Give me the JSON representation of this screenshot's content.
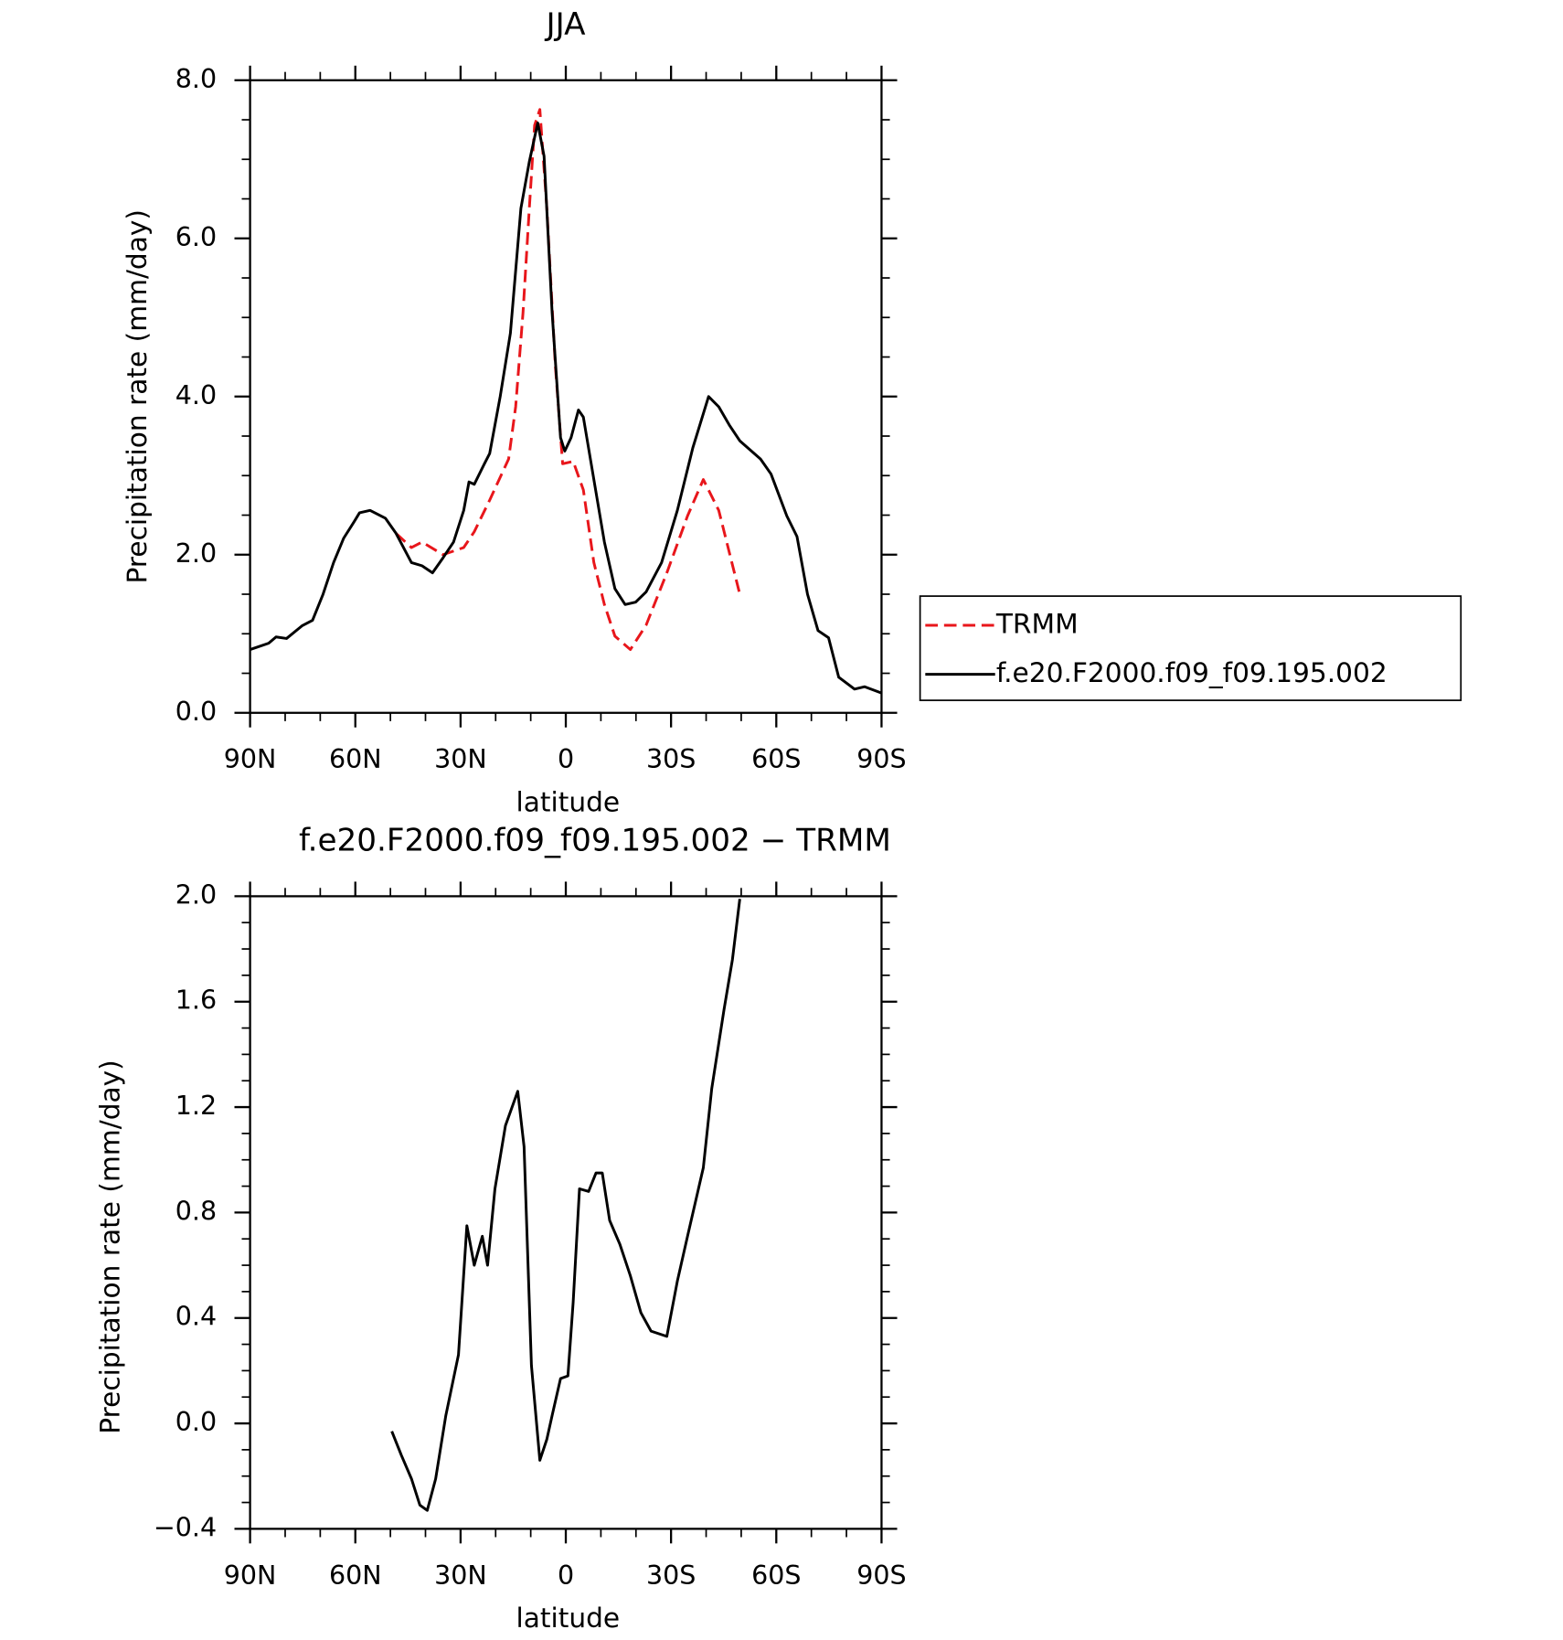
{
  "chart_data": [
    {
      "type": "line",
      "title": "JJA",
      "xlabel": "latitude",
      "ylabel": "Precipitation rate (mm/day)",
      "xlim": [
        90,
        -90
      ],
      "xticks": [
        {
          "value": 90,
          "label": "90N"
        },
        {
          "value": 60,
          "label": "60N"
        },
        {
          "value": 30,
          "label": "30N"
        },
        0,
        {
          "value": -30,
          "label": "30S"
        },
        {
          "value": -60,
          "label": "60S"
        },
        {
          "value": -90,
          "label": "90S"
        }
      ],
      "ylim": [
        0,
        8
      ],
      "yticks": [
        {
          "value": 0,
          "label": "0.0"
        },
        {
          "value": 2,
          "label": "2.0"
        },
        {
          "value": 4,
          "label": "4.0"
        },
        {
          "value": 6,
          "label": "6.0"
        },
        {
          "value": 8,
          "label": "8.0"
        }
      ],
      "legend": "outside-right",
      "series": [
        {
          "name": "TRMM",
          "color": "#e8161b",
          "line_style": "dashed",
          "x": [
            48.4,
            44,
            41,
            35,
            29.1,
            26.1,
            21.7,
            16.3,
            14.3,
            12.2,
            10.4,
            8.9,
            7.4,
            5.4,
            3,
            0.9,
            -2.1,
            -5,
            -8,
            -11,
            -14,
            -18.4,
            -22.9,
            -28.8,
            -34.7,
            -39.2,
            -43.6,
            -49.6
          ],
          "values": [
            2.27,
            2.09,
            2.16,
            2.0,
            2.09,
            2.29,
            2.69,
            3.21,
            3.87,
            5.06,
            6.38,
            7.43,
            7.63,
            6.38,
            4.4,
            3.15,
            3.18,
            2.82,
            1.9,
            1.37,
            0.97,
            0.8,
            1.11,
            1.77,
            2.49,
            2.95,
            2.56,
            1.5
          ]
        },
        {
          "name": "f.e20.F2000.f09_f09.195.002",
          "color": "#000000",
          "line_style": "solid",
          "x": [
            90,
            84.7,
            82.6,
            79.6,
            75.2,
            72.2,
            69.2,
            66.2,
            63.3,
            60.3,
            58.8,
            55.8,
            51.4,
            48.4,
            44,
            41,
            38,
            35,
            32,
            29.1,
            27.6,
            26.1,
            23.2,
            21.7,
            18.7,
            15.8,
            12.8,
            10.4,
            8,
            6.2,
            3.9,
            1.5,
            0.3,
            -1.5,
            -3.6,
            -5,
            -8,
            -11,
            -14,
            -16.9,
            -19.9,
            -22.9,
            -27.3,
            -31.8,
            -36.2,
            -40.7,
            -43.6,
            -46.6,
            -49.6,
            -55.5,
            -58.5,
            -63,
            -65.9,
            -68.9,
            -71.9,
            -74.9,
            -77.8,
            -82.3,
            -85.2,
            -90
          ],
          "values": [
            0.8,
            0.88,
            0.96,
            0.94,
            1.1,
            1.17,
            1.5,
            1.9,
            2.21,
            2.42,
            2.53,
            2.56,
            2.46,
            2.27,
            1.9,
            1.86,
            1.77,
            1.96,
            2.16,
            2.56,
            2.92,
            2.89,
            3.15,
            3.28,
            4.0,
            4.8,
            6.38,
            6.97,
            7.46,
            7.04,
            5.06,
            3.48,
            3.31,
            3.48,
            3.83,
            3.74,
            2.95,
            2.16,
            1.57,
            1.37,
            1.4,
            1.53,
            1.9,
            2.56,
            3.35,
            4.0,
            3.87,
            3.64,
            3.44,
            3.21,
            3.02,
            2.49,
            2.23,
            1.5,
            1.04,
            0.95,
            0.45,
            0.3,
            0.33,
            0.25
          ]
        }
      ]
    },
    {
      "type": "line",
      "title": "f.e20.F2000.f09_f09.195.002 − TRMM",
      "xlabel": "latitude",
      "ylabel": "Precipitation rate (mm/day)",
      "xlim": [
        90,
        -90
      ],
      "xticks": [
        {
          "value": 90,
          "label": "90N"
        },
        {
          "value": 60,
          "label": "60N"
        },
        {
          "value": 30,
          "label": "30N"
        },
        0,
        {
          "value": -30,
          "label": "30S"
        },
        {
          "value": -60,
          "label": "60S"
        },
        {
          "value": -90,
          "label": "90S"
        }
      ],
      "ylim": [
        -0.4,
        2.0
      ],
      "yticks": [
        {
          "value": -0.4,
          "label": "−0.4"
        },
        {
          "value": 0,
          "label": "0.0"
        },
        0.4,
        0.8,
        1.2,
        1.6,
        {
          "value": 2,
          "label": "2.0"
        }
      ],
      "color": "#000000",
      "x": [
        49.6,
        46.9,
        44,
        41.6,
        39.5,
        37.1,
        34.2,
        30.6,
        28.2,
        26.1,
        23.8,
        22.3,
        20.2,
        17.2,
        13.7,
        11.9,
        9.8,
        7.4,
        5.4,
        3.9,
        1.5,
        -0.6,
        -2.1,
        -3.9,
        -6.5,
        -8.6,
        -10.4,
        -12.5,
        -15.4,
        -18.4,
        -21.4,
        -24.3,
        -28.8,
        -31.8,
        -34.7,
        -39.2,
        -41.6,
        -45.1,
        -47.5,
        -49.6
      ],
      "values": [
        -0.03,
        -0.12,
        -0.21,
        -0.31,
        -0.33,
        -0.21,
        0.03,
        0.26,
        0.75,
        0.6,
        0.71,
        0.6,
        0.89,
        1.13,
        1.26,
        1.05,
        0.22,
        -0.14,
        -0.06,
        0.03,
        0.17,
        0.18,
        0.46,
        0.89,
        0.88,
        0.95,
        0.95,
        0.77,
        0.68,
        0.56,
        0.42,
        0.35,
        0.33,
        0.54,
        0.71,
        0.97,
        1.27,
        1.57,
        1.76,
        1.99
      ]
    }
  ]
}
